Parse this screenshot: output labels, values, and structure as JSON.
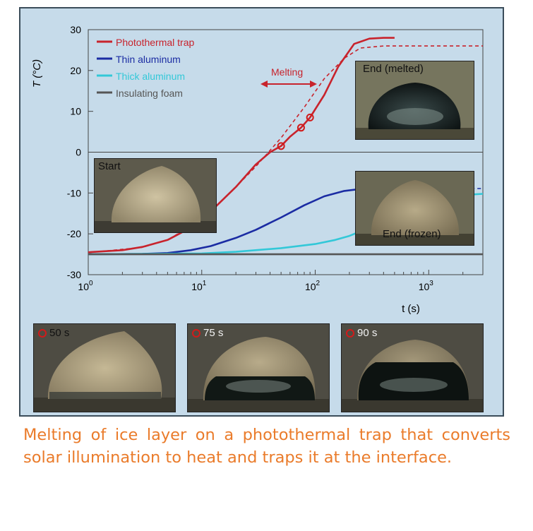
{
  "caption": "Melting of ice layer on a photothermal trap that converts solar illumination to heat and traps it at the interface.",
  "colors": {
    "panel_bg": "#c6dbea",
    "photothermal": "#c8232c",
    "thin_aluminum": "#1b2ca3",
    "thick_aluminum": "#33c8d8",
    "insulating_foam": "#555555",
    "caption": "#ea7b2a",
    "marker": "#d21a1a"
  },
  "chart_data": {
    "type": "line",
    "x_scale": "log",
    "xlim": [
      1,
      3000
    ],
    "ylim": [
      -30,
      30
    ],
    "ylabel": "T (°C)",
    "xlabel": "t (s)",
    "y_ticks": [
      "30",
      "20",
      "10",
      "0",
      "-10",
      "-20",
      "-30"
    ],
    "x_ticks": [
      {
        "base": "10",
        "exp": "0"
      },
      {
        "base": "10",
        "exp": "1"
      },
      {
        "base": "10",
        "exp": "2"
      },
      {
        "base": "10",
        "exp": "3"
      }
    ],
    "grid": false,
    "legend_position": "top-left",
    "legend": [
      "Photothermal trap",
      "Thin aluminum",
      "Thick aluminum",
      "Insulating foam"
    ],
    "series": [
      {
        "name": "Photothermal trap",
        "x": [
          1,
          2,
          3,
          5,
          8,
          12,
          20,
          30,
          40,
          50,
          60,
          75,
          90,
          120,
          160,
          220,
          300,
          400,
          500
        ],
        "y": [
          -24.5,
          -24.0,
          -23.2,
          -21.5,
          -18.5,
          -14.5,
          -8.5,
          -3.0,
          0.0,
          1.5,
          3.8,
          6.0,
          8.5,
          14.0,
          21.0,
          26.5,
          27.8,
          28.0,
          28.0
        ]
      },
      {
        "name": "Photothermal trap (model)",
        "style": "dashed",
        "x": [
          1,
          3,
          5,
          10,
          20,
          30,
          50,
          80,
          120,
          180,
          250,
          400,
          800,
          1500,
          3000
        ],
        "y": [
          -24.6,
          -23.3,
          -21.5,
          -16.5,
          -8.5,
          -3.5,
          3.5,
          11.0,
          18.0,
          23.0,
          25.5,
          26.0,
          26.0,
          26.0,
          26.0
        ]
      },
      {
        "name": "Thin aluminum",
        "x": [
          1,
          3,
          5,
          8,
          12,
          20,
          30,
          50,
          80,
          120,
          180,
          250,
          300
        ],
        "y": [
          -25.0,
          -24.9,
          -24.7,
          -24.0,
          -23.0,
          -21.0,
          -19.0,
          -16.0,
          -13.0,
          -10.8,
          -9.5,
          -9.0,
          -8.9
        ]
      },
      {
        "name": "Thin aluminum (model)",
        "style": "dashed",
        "x": [
          300,
          500,
          1000,
          3000
        ],
        "y": [
          -8.9,
          -8.9,
          -8.9,
          -8.9
        ]
      },
      {
        "name": "Thick aluminum",
        "x": [
          1,
          10,
          20,
          50,
          100,
          150,
          200,
          300,
          500,
          800,
          1200,
          2000,
          3000
        ],
        "y": [
          -25.0,
          -24.8,
          -24.4,
          -23.5,
          -22.5,
          -21.5,
          -20.5,
          -18.5,
          -15.8,
          -13.5,
          -11.8,
          -10.5,
          -10.2
        ]
      },
      {
        "name": "Insulating foam",
        "x": [
          1,
          3000
        ],
        "y": [
          -25.0,
          -25.0
        ]
      }
    ],
    "markers": [
      {
        "x": 50,
        "y": 1.5
      },
      {
        "x": 75,
        "y": 6.0
      },
      {
        "x": 90,
        "y": 8.5
      }
    ],
    "annotations": {
      "melting_label": "Melting"
    }
  },
  "photos": {
    "start": "Start",
    "end_melted": "End (melted)",
    "end_frozen": "End (frozen)",
    "t50": "50 s",
    "t75": "75 s",
    "t90": "90 s"
  }
}
